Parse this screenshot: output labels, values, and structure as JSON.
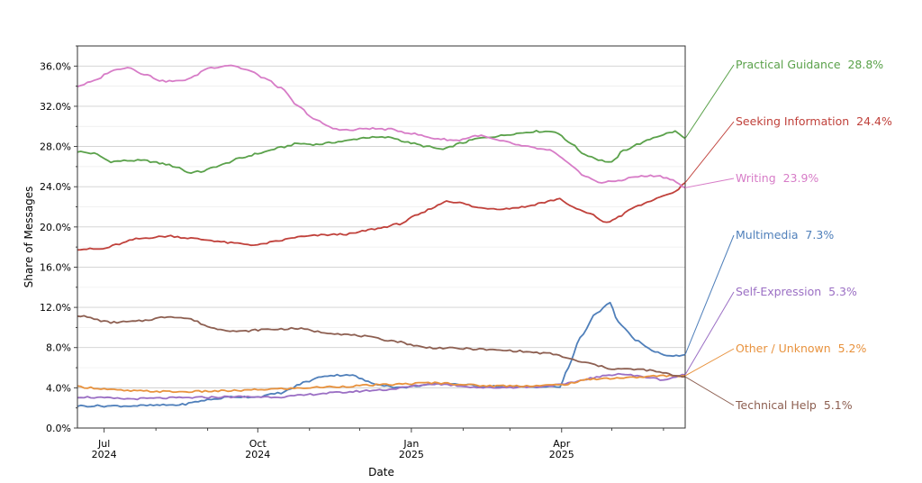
{
  "chart_data": {
    "type": "line",
    "xlabel": "Date",
    "ylabel": "Share of Messages",
    "ylim": [
      0,
      38
    ],
    "yticks": [
      "0.0%",
      "4.0%",
      "8.0%",
      "12.0%",
      "16.0%",
      "20.0%",
      "24.0%",
      "28.0%",
      "32.0%",
      "36.0%"
    ],
    "ytick_values": [
      0,
      4,
      8,
      12,
      16,
      20,
      24,
      28,
      32,
      36
    ],
    "xlim": [
      "2024-06-15",
      "2025-06-14"
    ],
    "xticks": [
      {
        "date": "2024-07-01",
        "label": "Jul",
        "year": "2024"
      },
      {
        "date": "2024-10-01",
        "label": "Oct",
        "year": "2024"
      },
      {
        "date": "2025-01-01",
        "label": "Jan",
        "year": "2025"
      },
      {
        "date": "2025-04-01",
        "label": "Apr",
        "year": "2025"
      }
    ],
    "minor_xticks": [
      "2024-08-01",
      "2024-09-01",
      "2024-11-01",
      "2024-12-01",
      "2025-02-01",
      "2025-03-01",
      "2025-05-01",
      "2025-06-01"
    ],
    "grid": true,
    "legend_placement": "right, labels at line ends",
    "series": [
      {
        "name": "Practical Guidance",
        "label": "Practical Guidance  28.8%",
        "color": "#5aa14a",
        "points": [
          [
            "2024-06-15",
            27.5
          ],
          [
            "2024-06-25",
            27.3
          ],
          [
            "2024-07-05",
            26.5
          ],
          [
            "2024-07-15",
            26.6
          ],
          [
            "2024-07-25",
            26.6
          ],
          [
            "2024-08-05",
            26.3
          ],
          [
            "2024-08-15",
            25.9
          ],
          [
            "2024-08-20",
            25.4
          ],
          [
            "2024-08-28",
            25.5
          ],
          [
            "2024-09-08",
            26.1
          ],
          [
            "2024-09-20",
            26.8
          ],
          [
            "2024-10-01",
            27.3
          ],
          [
            "2024-10-15",
            27.9
          ],
          [
            "2024-10-25",
            28.3
          ],
          [
            "2024-11-05",
            28.2
          ],
          [
            "2024-11-20",
            28.5
          ],
          [
            "2024-12-05",
            28.9
          ],
          [
            "2024-12-20",
            28.9
          ],
          [
            "2024-12-30",
            28.4
          ],
          [
            "2025-01-10",
            28.0
          ],
          [
            "2025-01-20",
            27.7
          ],
          [
            "2025-01-30",
            28.3
          ],
          [
            "2025-02-10",
            28.8
          ],
          [
            "2025-02-20",
            29.0
          ],
          [
            "2025-03-05",
            29.3
          ],
          [
            "2025-03-15",
            29.5
          ],
          [
            "2025-03-28",
            29.5
          ],
          [
            "2025-04-05",
            28.5
          ],
          [
            "2025-04-15",
            27.2
          ],
          [
            "2025-04-25",
            26.6
          ],
          [
            "2025-05-01",
            26.4
          ],
          [
            "2025-05-08",
            27.6
          ],
          [
            "2025-05-18",
            28.3
          ],
          [
            "2025-05-28",
            29.0
          ],
          [
            "2025-06-03",
            29.3
          ],
          [
            "2025-06-08",
            29.5
          ],
          [
            "2025-06-14",
            28.8
          ]
        ]
      },
      {
        "name": "Seeking Information",
        "label": "Seeking Information  24.4%",
        "color": "#c0413b",
        "points": [
          [
            "2024-06-15",
            17.8
          ],
          [
            "2024-06-30",
            17.8
          ],
          [
            "2024-07-10",
            18.3
          ],
          [
            "2024-07-20",
            18.8
          ],
          [
            "2024-08-01",
            19.0
          ],
          [
            "2024-08-10",
            19.1
          ],
          [
            "2024-08-20",
            18.9
          ],
          [
            "2024-09-01",
            18.7
          ],
          [
            "2024-09-15",
            18.4
          ],
          [
            "2024-10-01",
            18.2
          ],
          [
            "2024-10-10",
            18.5
          ],
          [
            "2024-10-25",
            19.0
          ],
          [
            "2024-11-10",
            19.2
          ],
          [
            "2024-11-25",
            19.3
          ],
          [
            "2024-12-10",
            19.8
          ],
          [
            "2024-12-25",
            20.3
          ],
          [
            "2025-01-05",
            21.2
          ],
          [
            "2025-01-15",
            22.0
          ],
          [
            "2025-01-22",
            22.6
          ],
          [
            "2025-01-30",
            22.4
          ],
          [
            "2025-02-10",
            21.9
          ],
          [
            "2025-02-25",
            21.8
          ],
          [
            "2025-03-10",
            22.0
          ],
          [
            "2025-03-20",
            22.4
          ],
          [
            "2025-03-31",
            22.8
          ],
          [
            "2025-04-08",
            21.9
          ],
          [
            "2025-04-18",
            21.3
          ],
          [
            "2025-04-28",
            20.4
          ],
          [
            "2025-05-05",
            21.0
          ],
          [
            "2025-05-15",
            22.0
          ],
          [
            "2025-05-28",
            22.8
          ],
          [
            "2025-06-08",
            23.5
          ],
          [
            "2025-06-14",
            24.4
          ]
        ]
      },
      {
        "name": "Writing",
        "label": "Writing  23.9%",
        "color": "#d77cc7",
        "points": [
          [
            "2024-06-15",
            34.0
          ],
          [
            "2024-06-25",
            34.5
          ],
          [
            "2024-07-05",
            35.5
          ],
          [
            "2024-07-15",
            35.9
          ],
          [
            "2024-07-25",
            35.2
          ],
          [
            "2024-08-05",
            34.5
          ],
          [
            "2024-08-15",
            34.5
          ],
          [
            "2024-08-22",
            34.8
          ],
          [
            "2024-09-01",
            35.8
          ],
          [
            "2024-09-15",
            36.1
          ],
          [
            "2024-09-25",
            35.6
          ],
          [
            "2024-10-05",
            34.8
          ],
          [
            "2024-10-15",
            33.8
          ],
          [
            "2024-10-25",
            32.0
          ],
          [
            "2024-11-05",
            30.6
          ],
          [
            "2024-11-15",
            29.8
          ],
          [
            "2024-11-25",
            29.6
          ],
          [
            "2024-12-05",
            29.8
          ],
          [
            "2024-12-20",
            29.7
          ],
          [
            "2025-01-01",
            29.3
          ],
          [
            "2025-01-15",
            28.8
          ],
          [
            "2025-01-28",
            28.6
          ],
          [
            "2025-02-10",
            29.1
          ],
          [
            "2025-02-25",
            28.5
          ],
          [
            "2025-03-10",
            28.0
          ],
          [
            "2025-03-25",
            27.6
          ],
          [
            "2025-04-05",
            26.4
          ],
          [
            "2025-04-15",
            25.0
          ],
          [
            "2025-04-25",
            24.4
          ],
          [
            "2025-05-05",
            24.6
          ],
          [
            "2025-05-15",
            25.0
          ],
          [
            "2025-05-28",
            25.1
          ],
          [
            "2025-06-05",
            24.8
          ],
          [
            "2025-06-14",
            23.9
          ]
        ]
      },
      {
        "name": "Multimedia",
        "label": "Multimedia  7.3%",
        "color": "#4f7fba",
        "points": [
          [
            "2024-06-15",
            2.2
          ],
          [
            "2024-07-15",
            2.2
          ],
          [
            "2024-08-15",
            2.3
          ],
          [
            "2024-09-01",
            2.8
          ],
          [
            "2024-09-15",
            3.1
          ],
          [
            "2024-10-01",
            3.1
          ],
          [
            "2024-10-15",
            3.5
          ],
          [
            "2024-10-30",
            4.6
          ],
          [
            "2024-11-10",
            5.2
          ],
          [
            "2024-11-25",
            5.3
          ],
          [
            "2024-12-10",
            4.4
          ],
          [
            "2024-12-25",
            4.0
          ],
          [
            "2025-01-10",
            4.3
          ],
          [
            "2025-01-25",
            4.4
          ],
          [
            "2025-02-10",
            4.2
          ],
          [
            "2025-03-01",
            4.1
          ],
          [
            "2025-03-31",
            4.1
          ],
          [
            "2025-04-05",
            6.0
          ],
          [
            "2025-04-12",
            9.0
          ],
          [
            "2025-04-22",
            11.5
          ],
          [
            "2025-04-30",
            12.4
          ],
          [
            "2025-05-05",
            10.5
          ],
          [
            "2025-05-15",
            8.8
          ],
          [
            "2025-05-25",
            7.7
          ],
          [
            "2025-06-05",
            7.1
          ],
          [
            "2025-06-14",
            7.3
          ]
        ]
      },
      {
        "name": "Self-Expression",
        "label": "Self-Expression  5.3%",
        "color": "#9b6fc4",
        "points": [
          [
            "2024-06-15",
            3.1
          ],
          [
            "2024-07-15",
            2.9
          ],
          [
            "2024-08-15",
            3.0
          ],
          [
            "2024-09-15",
            3.1
          ],
          [
            "2024-10-15",
            3.1
          ],
          [
            "2024-11-15",
            3.5
          ],
          [
            "2024-12-15",
            3.8
          ],
          [
            "2025-01-15",
            4.4
          ],
          [
            "2025-02-15",
            4.0
          ],
          [
            "2025-03-15",
            4.1
          ],
          [
            "2025-04-01",
            4.3
          ],
          [
            "2025-04-20",
            5.0
          ],
          [
            "2025-05-05",
            5.4
          ],
          [
            "2025-05-20",
            5.1
          ],
          [
            "2025-06-01",
            4.8
          ],
          [
            "2025-06-14",
            5.3
          ]
        ]
      },
      {
        "name": "Other / Unknown",
        "label": "Other / Unknown  5.2%",
        "color": "#e8923d",
        "points": [
          [
            "2024-06-15",
            4.1
          ],
          [
            "2024-07-15",
            3.7
          ],
          [
            "2024-08-15",
            3.6
          ],
          [
            "2024-09-15",
            3.7
          ],
          [
            "2024-10-15",
            3.9
          ],
          [
            "2024-11-15",
            4.1
          ],
          [
            "2024-12-15",
            4.3
          ],
          [
            "2025-01-15",
            4.5
          ],
          [
            "2025-02-15",
            4.2
          ],
          [
            "2025-03-15",
            4.2
          ],
          [
            "2025-04-01",
            4.3
          ],
          [
            "2025-04-20",
            4.9
          ],
          [
            "2025-05-10",
            5.0
          ],
          [
            "2025-06-01",
            5.2
          ],
          [
            "2025-06-14",
            5.2
          ]
        ]
      },
      {
        "name": "Technical Help",
        "label": "Technical Help  5.1%",
        "color": "#8d5f51",
        "points": [
          [
            "2024-06-15",
            11.2
          ],
          [
            "2024-07-05",
            10.5
          ],
          [
            "2024-07-20",
            10.6
          ],
          [
            "2024-08-10",
            11.1
          ],
          [
            "2024-08-20",
            10.9
          ],
          [
            "2024-09-05",
            9.9
          ],
          [
            "2024-09-20",
            9.6
          ],
          [
            "2024-10-05",
            9.8
          ],
          [
            "2024-10-25",
            9.9
          ],
          [
            "2024-11-10",
            9.5
          ],
          [
            "2024-11-30",
            9.2
          ],
          [
            "2024-12-20",
            8.7
          ],
          [
            "2025-01-10",
            8.0
          ],
          [
            "2025-02-01",
            7.9
          ],
          [
            "2025-03-01",
            7.7
          ],
          [
            "2025-03-25",
            7.4
          ],
          [
            "2025-04-15",
            6.5
          ],
          [
            "2025-05-01",
            5.9
          ],
          [
            "2025-05-20",
            5.8
          ],
          [
            "2025-06-14",
            5.1
          ]
        ]
      }
    ]
  }
}
